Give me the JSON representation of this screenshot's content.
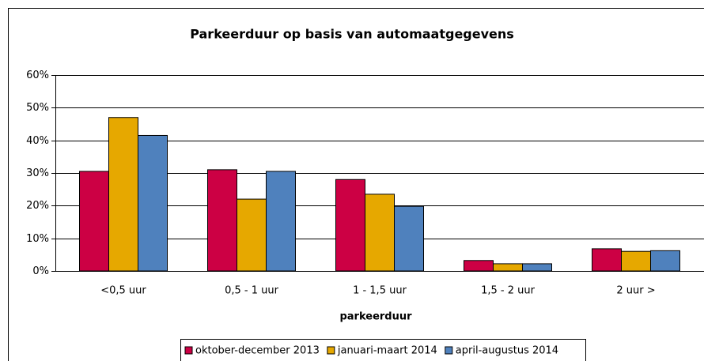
{
  "chart_data": {
    "type": "bar",
    "title": "Parkeerduur op basis van automaatgegevens",
    "xlabel": "parkeerduur",
    "categories": [
      "<0,5 uur",
      "0,5 - 1 uur",
      "1 - 1,5 uur",
      "1,5 - 2 uur",
      "2 uur >"
    ],
    "series": [
      {
        "name": "oktober-december 2013",
        "color": "#cc0044",
        "values": [
          30.5,
          31,
          28,
          3.2,
          6.8
        ]
      },
      {
        "name": "januari-maart 2014",
        "color": "#e6a800",
        "values": [
          47,
          22,
          23.5,
          2.2,
          6
        ]
      },
      {
        "name": "april-augustus 2014",
        "color": "#4f81bd",
        "values": [
          41.5,
          30.5,
          19.8,
          2.2,
          6.2
        ]
      }
    ],
    "ylim": [
      0,
      60
    ],
    "yticks": [
      {
        "value": 0,
        "label": "0%"
      },
      {
        "value": 10,
        "label": "10%"
      },
      {
        "value": 20,
        "label": "20%"
      },
      {
        "value": 30,
        "label": "30%"
      },
      {
        "value": 40,
        "label": "40%"
      },
      {
        "value": 50,
        "label": "50%"
      },
      {
        "value": 60,
        "label": "60%"
      }
    ],
    "grid": true,
    "legend": "bottom"
  }
}
